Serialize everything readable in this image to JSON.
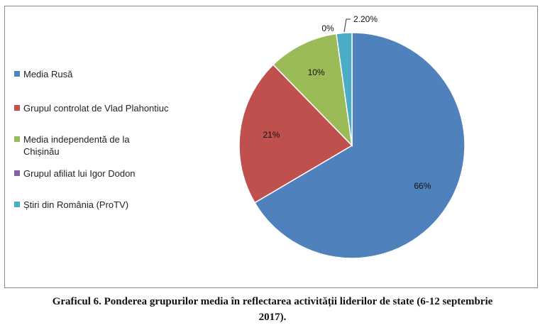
{
  "chart_data": {
    "type": "pie",
    "title": "",
    "slices": [
      {
        "label": "Media Rusă",
        "value": 66,
        "display": "66%",
        "color": "#4f81bd"
      },
      {
        "label": "Grupul controlat de Vlad Plahontiuc",
        "value": 21,
        "display": "21%",
        "color": "#c0504d"
      },
      {
        "label": "Media independentă de la Chișinău",
        "value": 10,
        "display": "10%",
        "color": "#9bbb59"
      },
      {
        "label": "Grupul afiliat lui Igor Dodon",
        "value": 0,
        "display": "0%",
        "color": "#8064a2"
      },
      {
        "label": "Știri din România (ProTV)",
        "value": 2.2,
        "display": "2.20%",
        "color": "#4bacc6"
      }
    ],
    "legend_position": "left"
  },
  "caption": "Graficul 6. Ponderea grupurilor media în reflectarea activității liderilor de state (6-12 septembrie 2017)."
}
